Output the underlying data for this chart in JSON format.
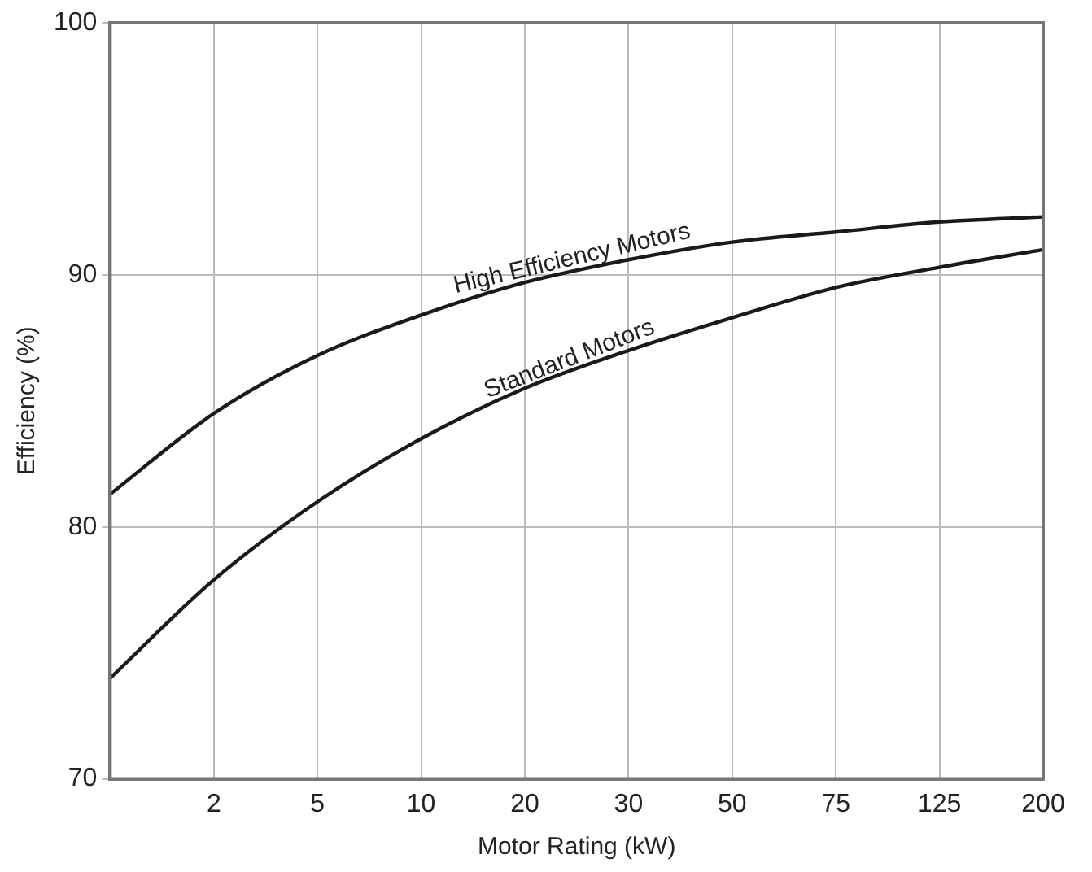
{
  "chart_data": {
    "type": "line",
    "xlabel": "Motor Rating (kW)",
    "ylabel": "Efficiency (%)",
    "categories": [
      null,
      "2",
      "5",
      "10",
      "20",
      "30",
      "50",
      "75",
      "125",
      "200"
    ],
    "series": [
      {
        "name": "High Efficiency Motors",
        "color": "#1a1a1a",
        "values": [
          81.3,
          84.5,
          86.8,
          88.4,
          89.7,
          90.6,
          91.3,
          91.7,
          92.1,
          92.3
        ]
      },
      {
        "name": "Standard Motors",
        "color": "#1a1a1a",
        "values": [
          74.0,
          77.9,
          81.0,
          83.5,
          85.5,
          87.0,
          88.3,
          89.5,
          90.3,
          91.0
        ]
      }
    ],
    "ylim": [
      70,
      100
    ],
    "yticks": [
      70,
      80,
      90,
      100
    ],
    "grid": true,
    "legend": false,
    "marker": "none",
    "line_style": "solid"
  }
}
